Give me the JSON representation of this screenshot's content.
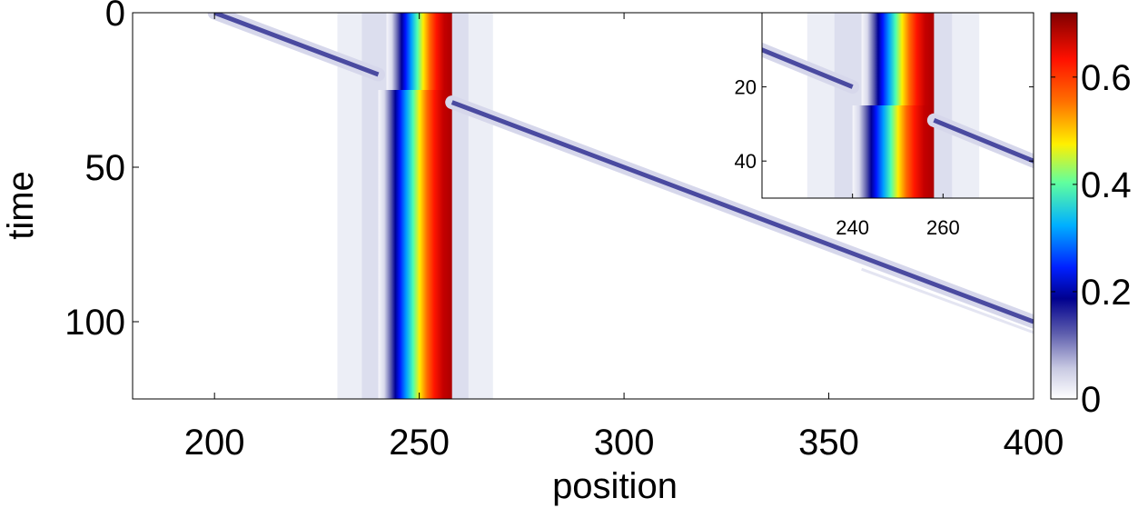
{
  "chart_data": [
    {
      "type": "heatmap",
      "title": "",
      "xlabel": "position",
      "ylabel": "time",
      "xlim": [
        180,
        400
      ],
      "ylim": [
        0,
        125
      ],
      "y_reversed": true,
      "x_ticks": [
        "200",
        "250",
        "300",
        "350",
        "400"
      ],
      "y_ticks": [
        "0",
        "50",
        "100"
      ],
      "colormap": "jet with white low end",
      "colorbar": {
        "range": [
          0,
          0.72
        ],
        "ticks": [
          "0",
          "0.2",
          "0.4",
          "0.6"
        ]
      },
      "features": {
        "stationary_band": {
          "left_edge": 240,
          "right_edge": 258,
          "peak_value": 0.72,
          "kink_time": 25
        },
        "incoming_pulse": {
          "x_start": 200,
          "t_start": 0,
          "x_end": 240,
          "t_end": 20,
          "value": 0.18
        },
        "outgoing_pulse": {
          "x_start": 258,
          "t_start": 29,
          "x_end": 400,
          "t_end": 100,
          "value": 0.18
        }
      }
    },
    {
      "type": "heatmap",
      "title": "inset",
      "xlim": [
        220,
        280
      ],
      "ylim": [
        0,
        50
      ],
      "y_reversed": true,
      "x_ticks": [
        "240",
        "260"
      ],
      "y_ticks": [
        "20",
        "40"
      ]
    }
  ],
  "colors": {
    "band_peak": "#b10000",
    "band_edge": "#00008f",
    "pulse": "#4a4aa0",
    "background": "#ffffff"
  }
}
